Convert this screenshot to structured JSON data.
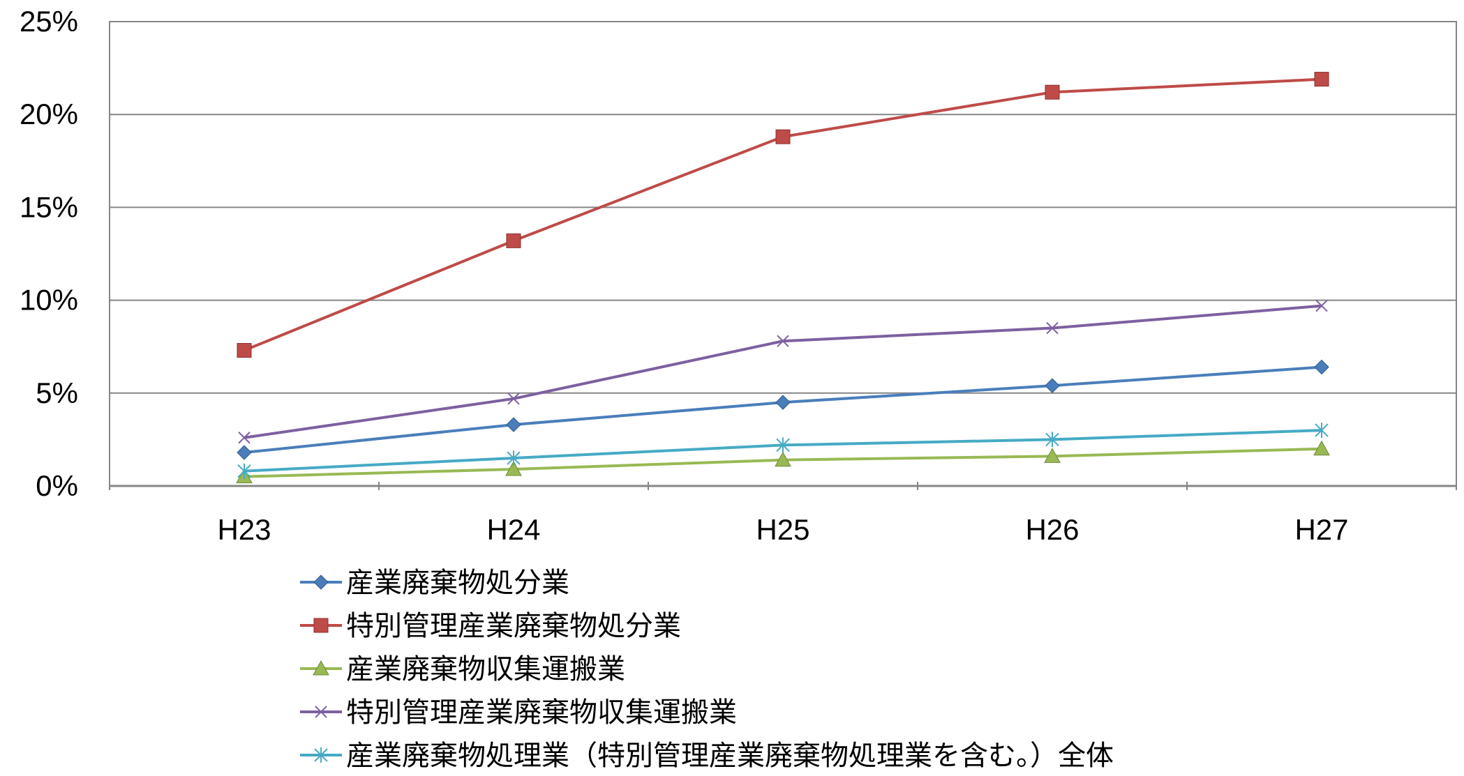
{
  "chart_data": {
    "type": "line",
    "categories": [
      "H23",
      "H24",
      "H25",
      "H26",
      "H27"
    ],
    "y_tick_labels": [
      "0%",
      "5%",
      "10%",
      "15%",
      "20%",
      "25%"
    ],
    "ylim": [
      0,
      25
    ],
    "y_unit": "%",
    "grid": true,
    "legend_position": "bottom",
    "series": [
      {
        "name": "産業廃棄物処分業",
        "color": "#4a7ebb",
        "marker": "diamond",
        "values": [
          1.8,
          3.3,
          4.5,
          5.4,
          6.4
        ]
      },
      {
        "name": "特別管理産業廃棄物処分業",
        "color": "#be4b48",
        "marker": "square",
        "values": [
          7.3,
          13.2,
          18.8,
          21.2,
          21.9
        ]
      },
      {
        "name": "産業廃棄物収集運搬業",
        "color": "#98b954",
        "marker": "triangle",
        "values": [
          0.5,
          0.9,
          1.4,
          1.6,
          2.0
        ]
      },
      {
        "name": "特別管理産業廃棄物収集運搬業",
        "color": "#7d60a0",
        "marker": "x",
        "values": [
          2.6,
          4.7,
          7.8,
          8.5,
          9.7
        ]
      },
      {
        "name": "産業廃棄物処理業（特別管理産業廃棄物処理業を含む。）全体",
        "color": "#46aac5",
        "marker": "asterisk",
        "values": [
          0.8,
          1.5,
          2.2,
          2.5,
          3.0
        ]
      }
    ]
  }
}
